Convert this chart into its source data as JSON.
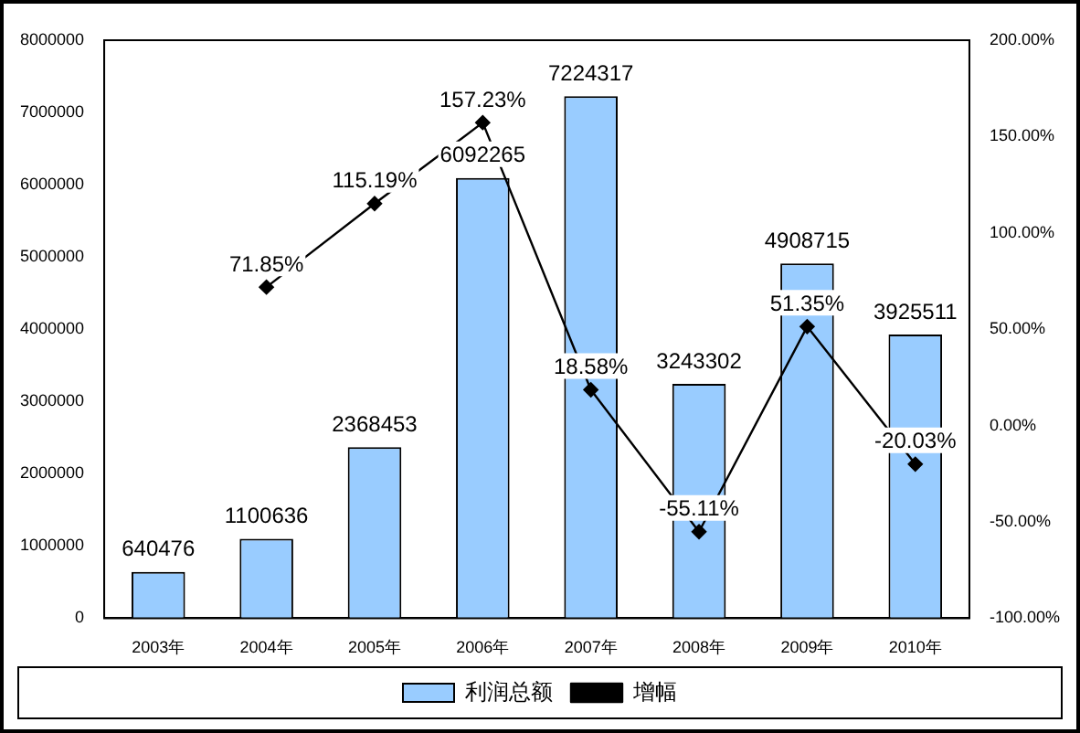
{
  "chart_data": {
    "type": "bar",
    "categories": [
      "2003年",
      "2004年",
      "2005年",
      "2006年",
      "2007年",
      "2008年",
      "2009年",
      "2010年"
    ],
    "series": [
      {
        "name": "利润总额",
        "color": "#99ccff",
        "values": [
          640476,
          1100636,
          2368453,
          6092265,
          7224317,
          3243302,
          4908715,
          3925511
        ],
        "value_labels": [
          "640476",
          "1100636",
          "2368453",
          "6092265",
          "7224317",
          "3243302",
          "4908715",
          "3925511"
        ]
      },
      {
        "name": "增幅",
        "type": "line",
        "axis": "y2",
        "color": "#000000",
        "values": [
          null,
          71.85,
          115.19,
          157.23,
          18.58,
          -55.11,
          51.35,
          -20.03
        ],
        "value_labels": [
          null,
          "71.85%",
          "115.19%",
          "157.23%",
          "18.58%",
          "-55.11%",
          "51.35%",
          "-20.03%"
        ]
      }
    ],
    "ylim": [
      0,
      8000000
    ],
    "yticks": [
      0,
      1000000,
      2000000,
      3000000,
      4000000,
      5000000,
      6000000,
      7000000,
      8000000
    ],
    "y2lim": [
      -100,
      200
    ],
    "y2ticks": [
      {
        "value": -100,
        "label": "-100.00%"
      },
      {
        "value": -50,
        "label": "-50.00%"
      },
      {
        "value": 0,
        "label": "0.00%"
      },
      {
        "value": 50,
        "label": "50.00%"
      },
      {
        "value": 100,
        "label": "100.00%"
      },
      {
        "value": 150,
        "label": "150.00%"
      },
      {
        "value": 200,
        "label": "200.00%"
      }
    ],
    "grid": false,
    "legend": "bottom",
    "marker": "diamond",
    "line_style": "solid"
  }
}
